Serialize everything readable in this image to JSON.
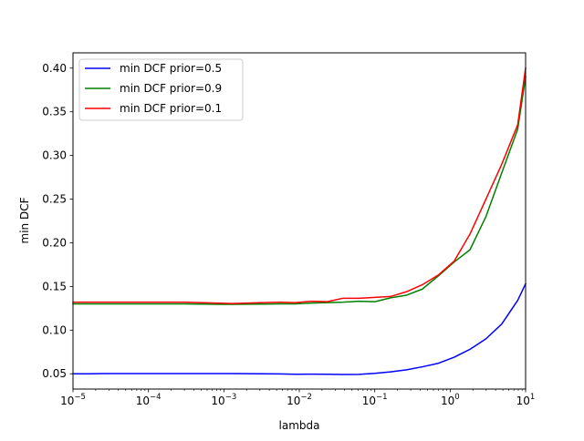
{
  "chart_data": {
    "type": "line",
    "title": "",
    "xlabel": "lambda",
    "ylabel": "min DCF",
    "xscale": "log",
    "xlim": [
      1e-05,
      10
    ],
    "ylim": [
      0.0325,
      0.4175
    ],
    "xtick_labels": [
      {
        "base": "10",
        "exp": "−5",
        "value": 1e-05
      },
      {
        "base": "10",
        "exp": "−4",
        "value": 0.0001
      },
      {
        "base": "10",
        "exp": "−3",
        "value": 0.001
      },
      {
        "base": "10",
        "exp": "−2",
        "value": 0.01
      },
      {
        "base": "10",
        "exp": "−1",
        "value": 0.1
      },
      {
        "base": "10",
        "exp": "0",
        "value": 1
      },
      {
        "base": "10",
        "exp": "1",
        "value": 10
      }
    ],
    "ytick_labels": [
      "0.05",
      "0.10",
      "0.15",
      "0.20",
      "0.25",
      "0.30",
      "0.35",
      "0.40"
    ],
    "ytick_values": [
      0.05,
      0.1,
      0.15,
      0.2,
      0.25,
      0.3,
      0.35,
      0.4
    ],
    "grid": false,
    "legend_position": "top-left",
    "x": [
      1e-05,
      1.62e-05,
      2.64e-05,
      4.28e-05,
      6.95e-05,
      0.000113,
      0.000183,
      0.000298,
      0.000483,
      0.000785,
      0.00127,
      0.00207,
      0.00336,
      0.00546,
      0.00886,
      0.0144,
      0.0234,
      0.0379,
      0.0616,
      0.1,
      0.162,
      0.264,
      0.428,
      0.695,
      1.13,
      1.83,
      2.98,
      4.83,
      7.85,
      10
    ],
    "series": [
      {
        "name": "min DCF prior=0.5",
        "color": "#0000ff",
        "values": [
          0.05,
          0.05,
          0.0502,
          0.0502,
          0.0502,
          0.0502,
          0.0502,
          0.0502,
          0.0502,
          0.0502,
          0.0502,
          0.0501,
          0.05,
          0.0498,
          0.0494,
          0.0496,
          0.0494,
          0.0492,
          0.0493,
          0.0505,
          0.0522,
          0.0545,
          0.058,
          0.062,
          0.069,
          0.078,
          0.09,
          0.107,
          0.134,
          0.153
        ]
      },
      {
        "name": "min DCF prior=0.9",
        "color": "#008000",
        "values": [
          0.13,
          0.13,
          0.13,
          0.13,
          0.13,
          0.13,
          0.13,
          0.13,
          0.1298,
          0.1296,
          0.1295,
          0.1297,
          0.1298,
          0.13,
          0.13,
          0.131,
          0.1315,
          0.132,
          0.133,
          0.1325,
          0.137,
          0.14,
          0.147,
          0.162,
          0.178,
          0.192,
          0.23,
          0.28,
          0.33,
          0.39
        ]
      },
      {
        "name": "min DCF prior=0.1",
        "color": "#ff0000",
        "values": [
          0.132,
          0.132,
          0.132,
          0.132,
          0.132,
          0.132,
          0.132,
          0.132,
          0.1315,
          0.131,
          0.1305,
          0.131,
          0.1315,
          0.132,
          0.1315,
          0.133,
          0.1325,
          0.1365,
          0.1365,
          0.1375,
          0.1385,
          0.144,
          0.152,
          0.163,
          0.179,
          0.21,
          0.25,
          0.29,
          0.335,
          0.4
        ]
      }
    ]
  }
}
